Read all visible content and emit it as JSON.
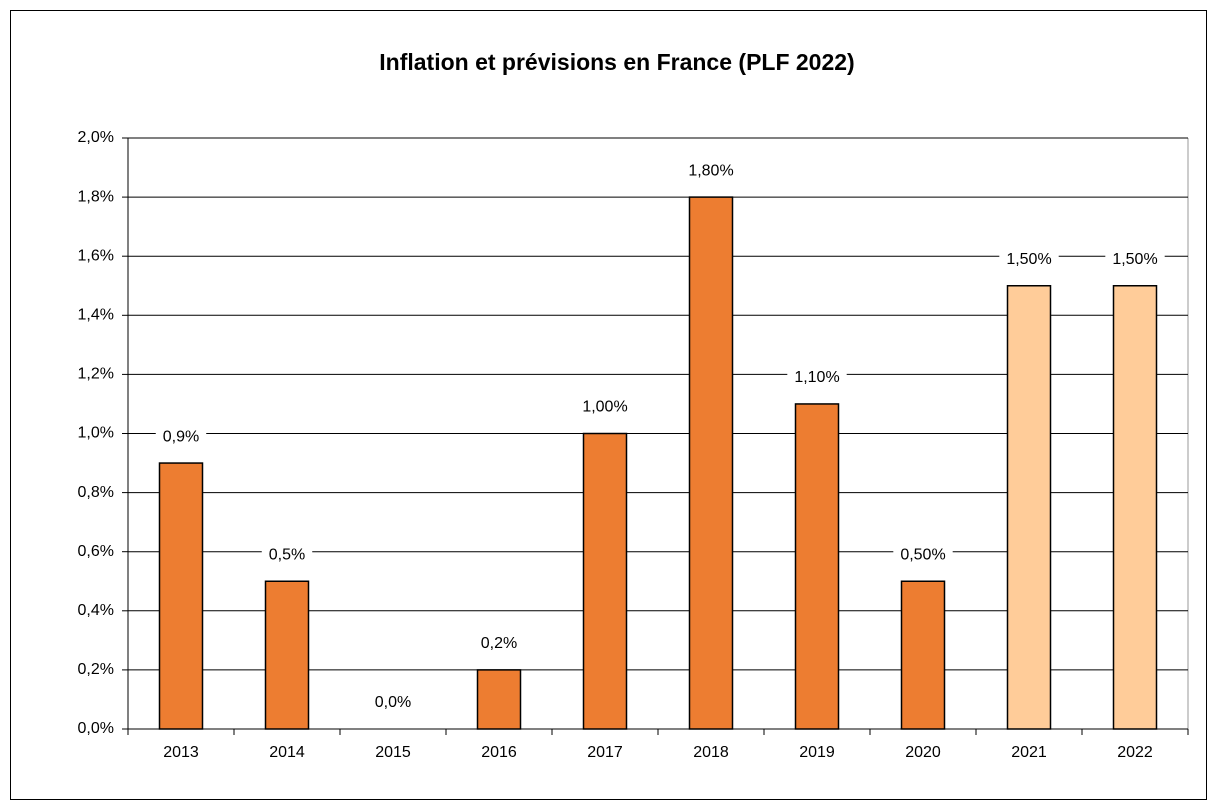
{
  "chart_data": {
    "type": "bar",
    "title": "Inflation et prévisions en France (PLF 2022)",
    "categories": [
      "2013",
      "2014",
      "2015",
      "2016",
      "2017",
      "2018",
      "2019",
      "2020",
      "2021",
      "2022"
    ],
    "values": [
      0.9,
      0.5,
      0.0,
      0.2,
      1.0,
      1.8,
      1.1,
      0.5,
      1.5,
      1.5
    ],
    "value_labels": [
      "0,9%",
      "0,5%",
      "0,0%",
      "0,2%",
      "1,00%",
      "1,80%",
      "1,10%",
      "0,50%",
      "1,50%",
      "1,50%"
    ],
    "colors": [
      "#ED7D31",
      "#ED7D31",
      "#ED7D31",
      "#ED7D31",
      "#ED7D31",
      "#ED7D31",
      "#ED7D31",
      "#ED7D31",
      "#FFCC99",
      "#FFCC99"
    ],
    "ylim": [
      0,
      2.0
    ],
    "yticks": [
      {
        "value": 0,
        "label": "0,0%"
      },
      {
        "value": 0.2,
        "label": "0,2%"
      },
      {
        "value": 0.4,
        "label": "0,4%"
      },
      {
        "value": 0.6,
        "label": "0,6%"
      },
      {
        "value": 0.8,
        "label": "0,8%"
      },
      {
        "value": 1.0,
        "label": "1,0%"
      },
      {
        "value": 1.2,
        "label": "1,2%"
      },
      {
        "value": 1.4,
        "label": "1,4%"
      },
      {
        "value": 1.6,
        "label": "1,6%"
      },
      {
        "value": 1.8,
        "label": "1,8%"
      },
      {
        "value": 2.0,
        "label": "2,0%"
      }
    ],
    "grid": true
  }
}
